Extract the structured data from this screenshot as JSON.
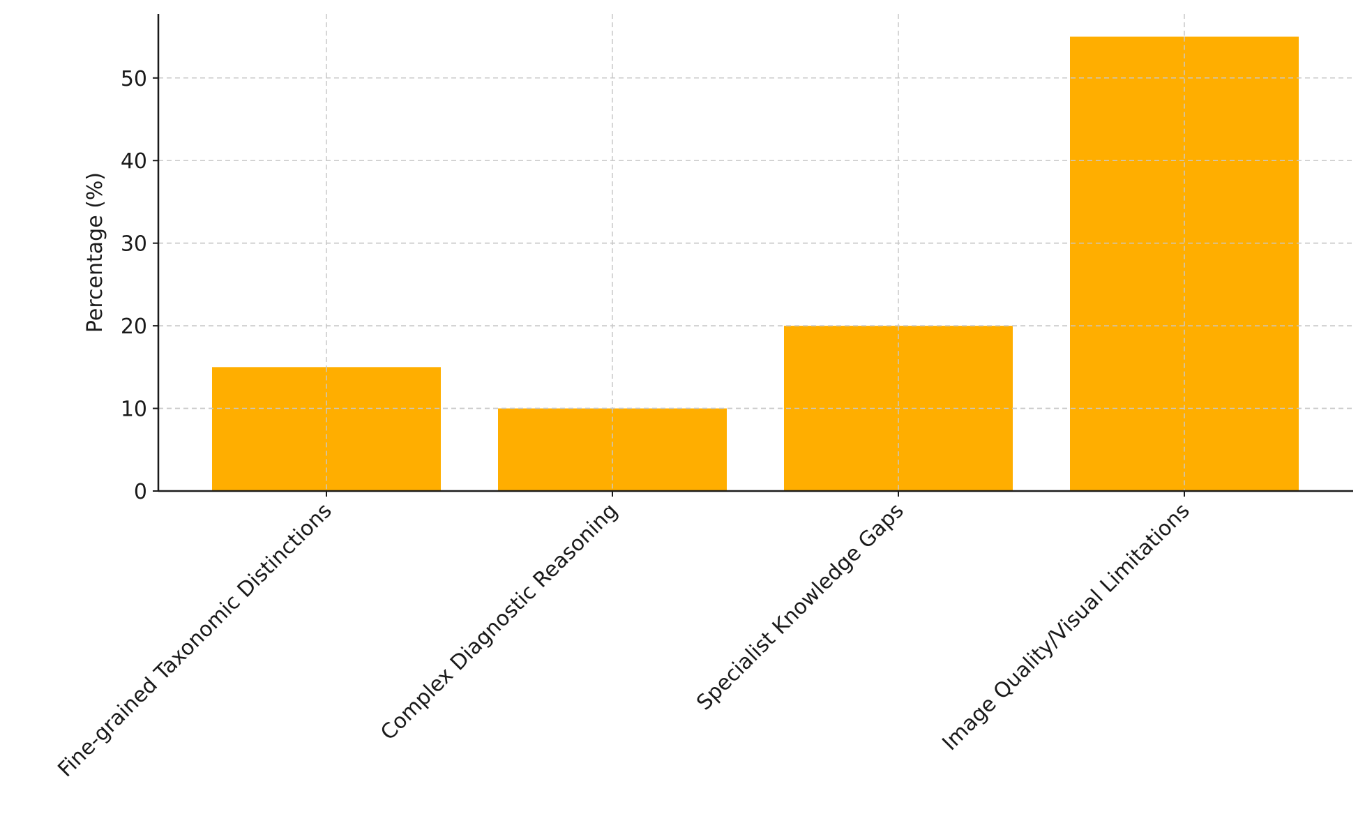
{
  "chart_data": {
    "type": "bar",
    "title": "",
    "xlabel": "",
    "ylabel": "Percentage (%)",
    "categories": [
      "Fine-grained Taxonomic Distinctions",
      "Complex Diagnostic Reasoning",
      "Specialist Knowledge Gaps",
      "Image Quality/Visual Limitations"
    ],
    "values": [
      15,
      10,
      20,
      55
    ],
    "ylim": [
      0,
      57.75
    ],
    "yticks": [
      0,
      10,
      20,
      30,
      40,
      50
    ],
    "grid": true,
    "bar_color": "#FFAE00",
    "x_tick_rotation": 45
  }
}
